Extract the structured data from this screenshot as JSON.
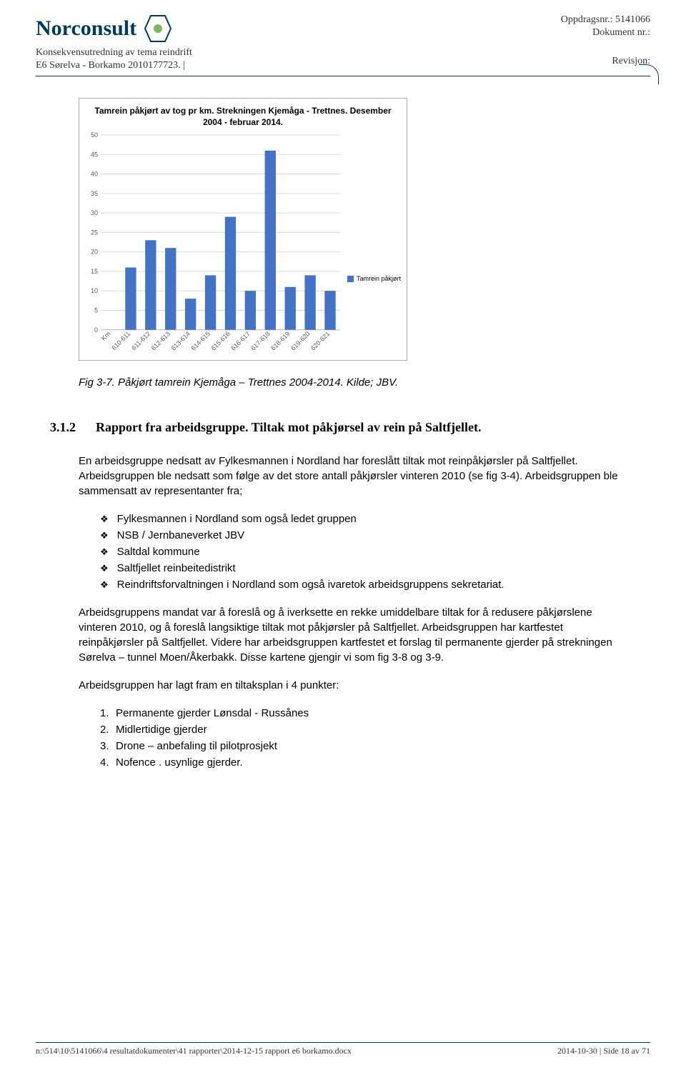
{
  "header": {
    "logo_text": "Norconsult",
    "subtitle1": "Konsekvensutredning av tema reindrift",
    "subtitle2": "E6 Sørelva - Borkamo 2010177723.   |",
    "oppdragsnr": "Oppdragsnr.: 5141066",
    "dokumentnr": "Dokument nr.:",
    "revisjon": "Revisjon:"
  },
  "chart": {
    "title": "Tamrein påkjørt av tog pr km.  Strekningen Kjemåga - Trettnes.  Desember 2004 - februar 2014.",
    "type": "bar",
    "legend_label": "Tamrein påkjørt",
    "categories": [
      "Km",
      "610-611",
      "611-612",
      "612-613",
      "613-614",
      "614-615",
      "615-616",
      "616-617",
      "617-618",
      "618-619",
      "619-620",
      "620-621"
    ],
    "values": [
      0,
      16,
      23,
      21,
      8,
      14,
      29,
      10,
      46,
      11,
      14,
      10
    ],
    "ylim": [
      0,
      50
    ],
    "ytick_step": 5,
    "bar_color": "#4472c4",
    "grid_color": "#d9d9d9",
    "axis_color": "#bfbfbf",
    "background_color": "#ffffff",
    "title_fontsize": 12,
    "tick_fontsize": 9,
    "bar_width": 0.55
  },
  "figure_caption": "Fig 3-7. Påkjørt tamrein Kjemåga – Trettnes 2004-2014.  Kilde; JBV.",
  "section": {
    "number": "3.1.2",
    "title": "Rapport fra arbeidsgruppe. Tiltak mot påkjørsel av rein på Saltfjellet."
  },
  "para1": "En arbeidsgruppe nedsatt av Fylkesmannen i Nordland har foreslått tiltak mot reinpåkjørsler på Saltfjellet.  Arbeidsgruppen ble nedsatt som følge av det store antall påkjørsler vinteren 2010 (se fig 3-4). Arbeidsgruppen ble sammensatt av representanter fra;",
  "bullets": [
    "Fylkesmannen i Nordland som også ledet gruppen",
    "NSB / Jernbaneverket JBV",
    "Saltdal kommune",
    "Saltfjellet reinbeitedistrikt",
    "Reindriftsforvaltningen i Nordland som også ivaretok arbeidsgruppens sekretariat."
  ],
  "para2": "Arbeidsgruppens mandat var å foreslå og å iverksette en rekke umiddelbare tiltak for å redusere påkjørslene vinteren 2010, og å foreslå langsiktige tiltak mot påkjørsler på Saltfjellet. Arbeidsgruppen har kartfestet reinpåkjørsler på Saltfjellet.  Videre har arbeidsgruppen kartfestet et forslag til permanente gjerder på strekningen Sørelva – tunnel Moen/Åkerbakk.  Disse kartene gjengir vi som fig 3-8 og 3-9.",
  "para3": "Arbeidsgruppen har lagt fram en tiltaksplan i 4 punkter:",
  "numbered": [
    "Permanente gjerder Lønsdal - Russånes",
    "Midlertidige gjerder",
    "Drone – anbefaling til pilotprosjekt",
    "Nofence . usynlige gjerder."
  ],
  "footer": {
    "left": "n:\\514\\10\\5141066\\4 resultatdokumenter\\41 rapporter\\2014-12-15 rapport e6 borkamo.docx",
    "right": "2014-10-30 | Side 18 av 71"
  }
}
